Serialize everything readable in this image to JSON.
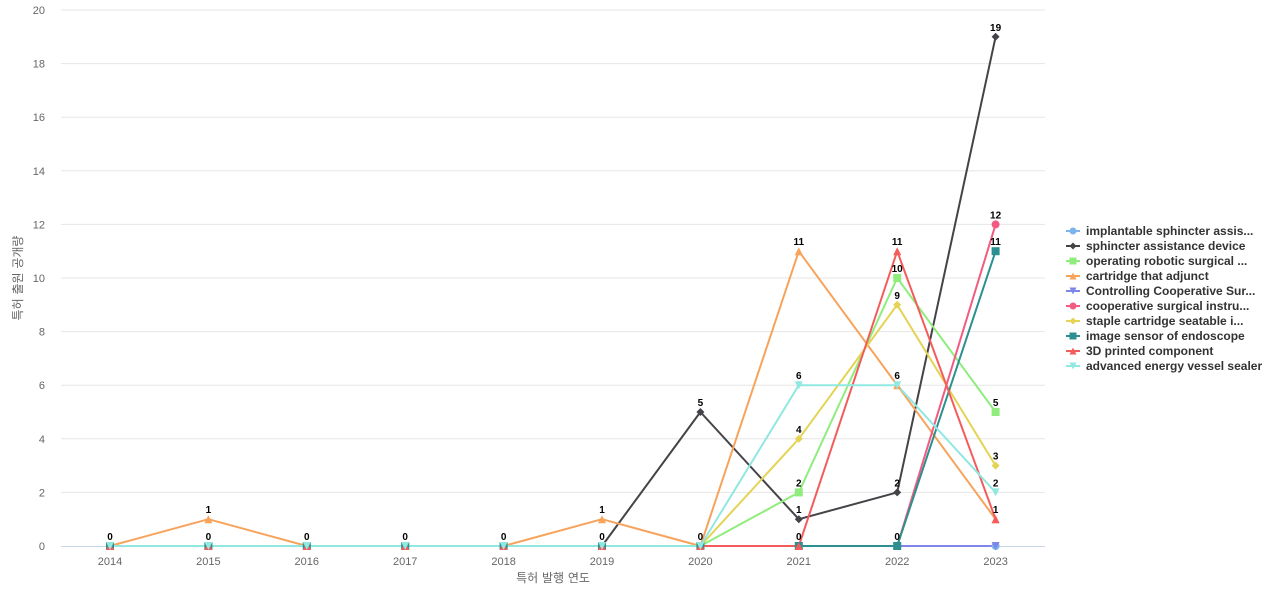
{
  "chart_data": {
    "type": "line",
    "xlabel": "특허 발행 연도",
    "ylabel": "특허 출원 공개량",
    "x": [
      "2014",
      "2015",
      "2016",
      "2017",
      "2018",
      "2019",
      "2020",
      "2021",
      "2022",
      "2023"
    ],
    "ylim": [
      0,
      20
    ],
    "yticks": [
      0,
      2,
      4,
      6,
      8,
      10,
      12,
      14,
      16,
      18,
      20
    ],
    "grid": true,
    "legend_position": "right",
    "series": [
      {
        "name": "implantable sphincter assis...",
        "color": "#7cb5ec",
        "marker": "circle",
        "values": [
          0,
          0,
          0,
          0,
          0,
          0,
          0,
          0,
          0,
          0
        ]
      },
      {
        "name": "sphincter assistance device",
        "color": "#434348",
        "marker": "diamond",
        "values": [
          0,
          0,
          0,
          0,
          0,
          0,
          5,
          1,
          2,
          19
        ]
      },
      {
        "name": "operating robotic surgical ...",
        "color": "#90ed7d",
        "marker": "square",
        "values": [
          0,
          0,
          0,
          0,
          0,
          0,
          0,
          2,
          10,
          5
        ]
      },
      {
        "name": "cartridge that adjunct",
        "color": "#f7a35c",
        "marker": "triangle",
        "values": [
          0,
          1,
          0,
          0,
          0,
          1,
          0,
          11,
          6,
          1
        ]
      },
      {
        "name": "Controlling Cooperative Sur...",
        "color": "#8085e9",
        "marker": "triangle-down",
        "values": [
          0,
          0,
          0,
          0,
          0,
          0,
          0,
          0,
          0,
          0
        ]
      },
      {
        "name": "cooperative surgical instru...",
        "color": "#f15c80",
        "marker": "circle",
        "values": [
          0,
          0,
          0,
          0,
          0,
          0,
          0,
          0,
          0,
          12
        ]
      },
      {
        "name": "staple cartridge seatable i...",
        "color": "#e4d354",
        "marker": "diamond",
        "values": [
          0,
          0,
          0,
          0,
          0,
          0,
          0,
          4,
          9,
          3
        ]
      },
      {
        "name": "image sensor of endoscope",
        "color": "#2b908f",
        "marker": "square",
        "values": [
          0,
          0,
          0,
          0,
          0,
          0,
          0,
          0,
          0,
          11
        ]
      },
      {
        "name": "3D printed component",
        "color": "#f45b5b",
        "marker": "triangle",
        "values": [
          0,
          0,
          0,
          0,
          0,
          0,
          0,
          0,
          11,
          1
        ]
      },
      {
        "name": "advanced energy vessel sealer",
        "color": "#91e8e1",
        "marker": "triangle-down",
        "values": [
          0,
          0,
          0,
          0,
          0,
          0,
          0,
          6,
          6,
          2
        ]
      }
    ],
    "data_labels": [
      {
        "series": 3,
        "x": "2014",
        "text": "0"
      },
      {
        "series": 3,
        "x": "2015",
        "text": "1"
      },
      {
        "series": 0,
        "x": "2015",
        "text": "0"
      },
      {
        "series": 3,
        "x": "2016",
        "text": "0"
      },
      {
        "series": 3,
        "x": "2017",
        "text": "0"
      },
      {
        "series": 3,
        "x": "2018",
        "text": "0"
      },
      {
        "series": 3,
        "x": "2019",
        "text": "1"
      },
      {
        "series": 0,
        "x": "2019",
        "text": "0"
      },
      {
        "series": 1,
        "x": "2020",
        "text": "5"
      },
      {
        "series": 0,
        "x": "2020",
        "text": "0"
      },
      {
        "series": 3,
        "x": "2021",
        "text": "11"
      },
      {
        "series": 9,
        "x": "2021",
        "text": "6"
      },
      {
        "series": 6,
        "x": "2021",
        "text": "4"
      },
      {
        "series": 2,
        "x": "2021",
        "text": "2"
      },
      {
        "series": 1,
        "x": "2021",
        "text": "1"
      },
      {
        "series": 0,
        "x": "2021",
        "text": "0"
      },
      {
        "series": 8,
        "x": "2022",
        "text": "11"
      },
      {
        "series": 2,
        "x": "2022",
        "text": "10"
      },
      {
        "series": 6,
        "x": "2022",
        "text": "9"
      },
      {
        "series": 3,
        "x": "2022",
        "text": "6"
      },
      {
        "series": 1,
        "x": "2022",
        "text": "2"
      },
      {
        "series": 0,
        "x": "2022",
        "text": "0"
      },
      {
        "series": 1,
        "x": "2023",
        "text": "19"
      },
      {
        "series": 5,
        "x": "2023",
        "text": "12"
      },
      {
        "series": 7,
        "x": "2023",
        "text": "11"
      },
      {
        "series": 2,
        "x": "2023",
        "text": "5"
      },
      {
        "series": 6,
        "x": "2023",
        "text": "3"
      },
      {
        "series": 9,
        "x": "2023",
        "text": "2"
      },
      {
        "series": 8,
        "x": "2023",
        "text": "1"
      }
    ]
  }
}
